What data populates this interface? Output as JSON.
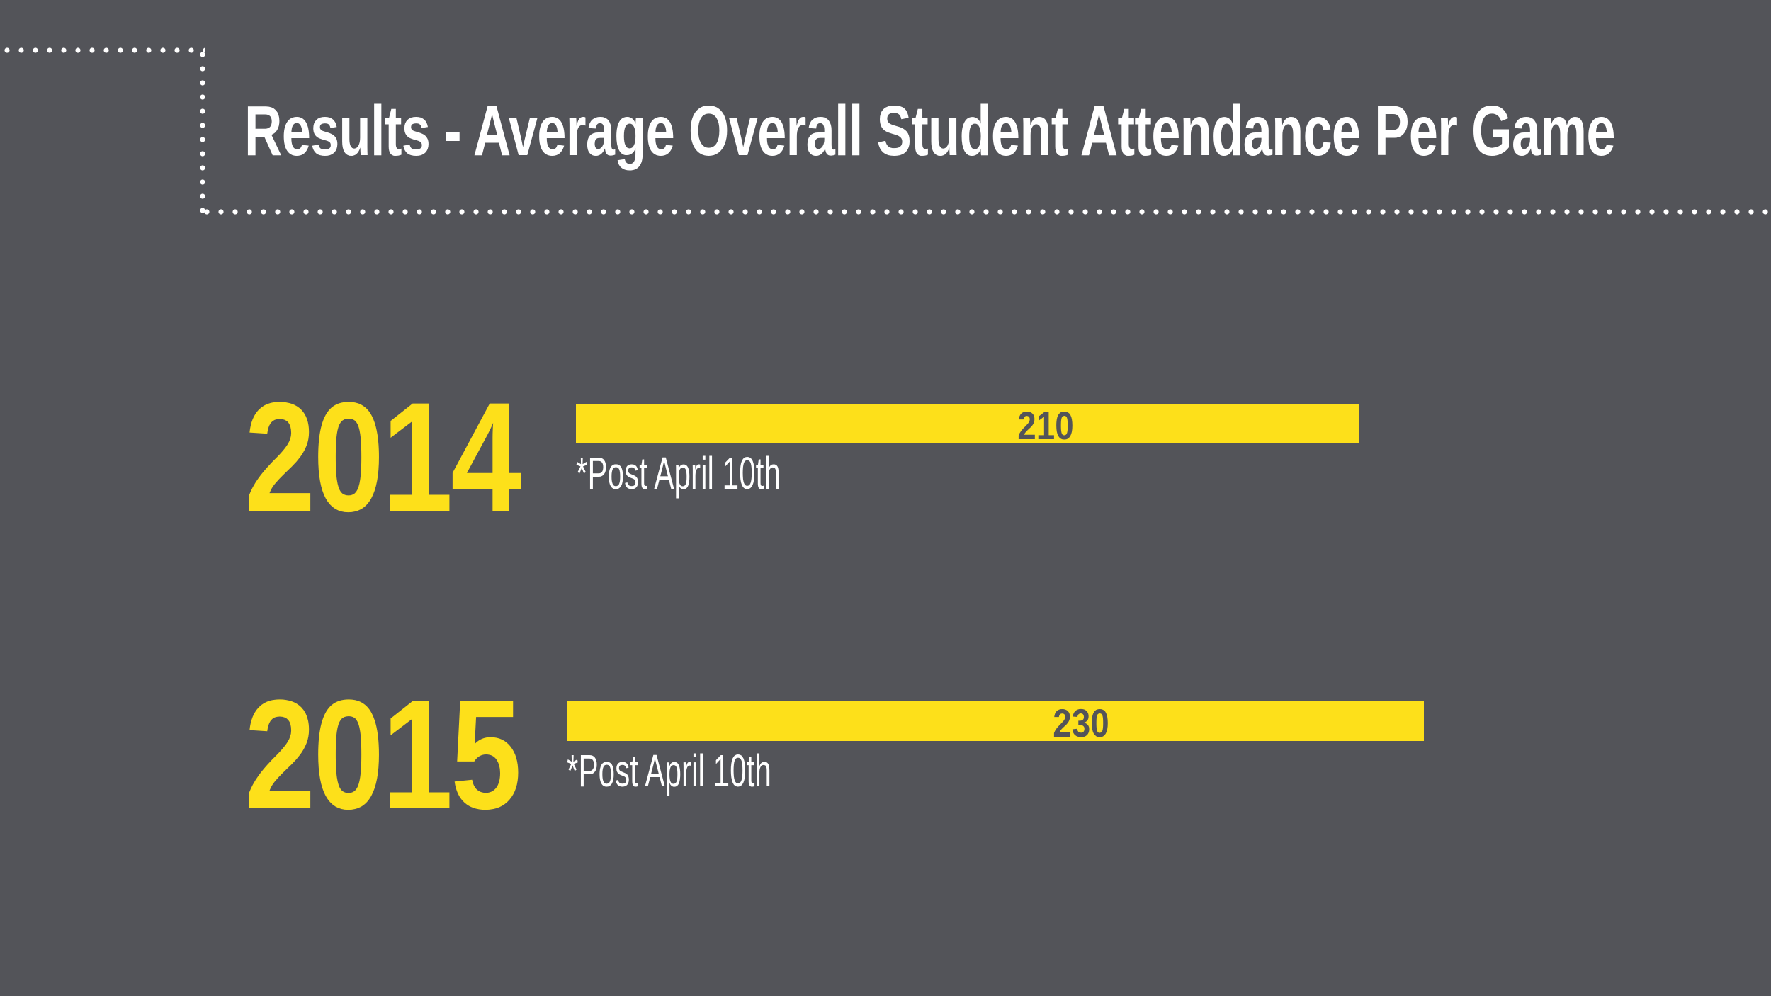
{
  "title": "Results - Average Overall Student Attendance Per Game",
  "colors": {
    "background": "#535459",
    "accent": "#fde01a",
    "text": "#ffffff"
  },
  "chart_data": {
    "type": "bar",
    "orientation": "horizontal",
    "title": "Results - Average Overall Student Attendance Per Game",
    "categories": [
      "2014",
      "2015"
    ],
    "values": [
      210,
      230
    ],
    "data_labels": [
      "210",
      "230"
    ],
    "annotations": [
      "*Post April 10th",
      "*Post April 10th"
    ],
    "xlim": [
      0,
      283
    ],
    "grid": false,
    "legend": "none"
  }
}
